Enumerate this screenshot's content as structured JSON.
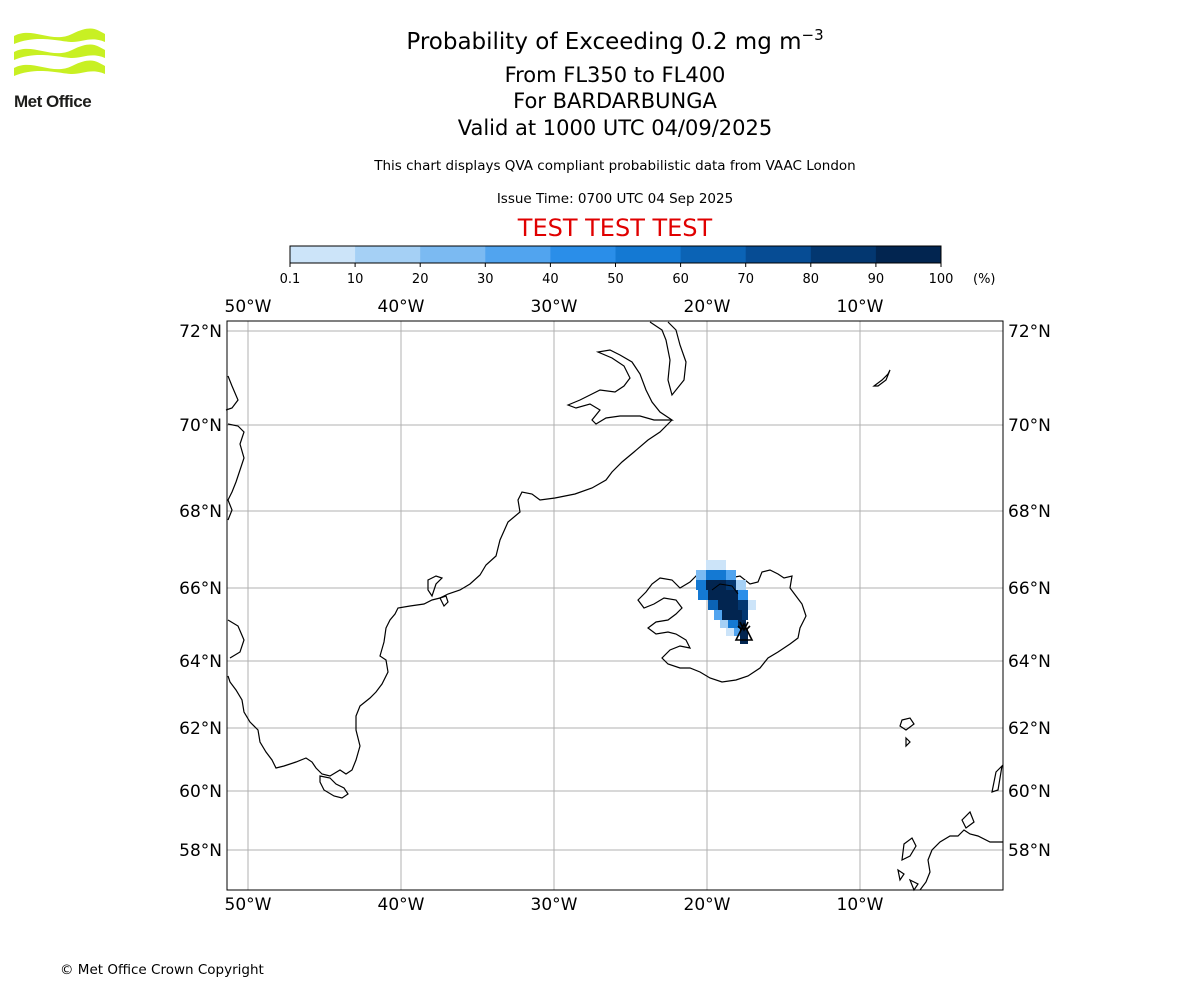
{
  "logo": {
    "text": "Met Office",
    "color": "#c8f023"
  },
  "title": {
    "main": "Probability of Exceeding 0.2 mg m",
    "main_superscript": "−3",
    "range": "From FL350 to FL400",
    "volcano": "For BARDARBUNGA",
    "valid": "Valid at 1000 UTC 04/09/2025"
  },
  "description": "This chart displays QVA compliant probabilistic data from VAAC London",
  "issue_time": "Issue Time: 0700 UTC 04 Sep 2025",
  "test_banner": "TEST TEST TEST",
  "colorbar": {
    "ticks": [
      "0.1",
      "10",
      "20",
      "30",
      "40",
      "50",
      "60",
      "70",
      "80",
      "90",
      "100"
    ],
    "unit": "(%)",
    "colors": [
      "#f0f7ff",
      "#cce4f9",
      "#a5d0f5",
      "#7bbaf2",
      "#51a4ef",
      "#2a8ee9",
      "#1479d3",
      "#0b63b5",
      "#064c94",
      "#033770",
      "#022550"
    ]
  },
  "map": {
    "longitude_labels": [
      "50°W",
      "40°W",
      "30°W",
      "20°W",
      "10°W"
    ],
    "latitude_labels": [
      "72°N",
      "70°N",
      "68°N",
      "66°N",
      "64°N",
      "62°N",
      "60°N",
      "58°N"
    ],
    "gridlines": true,
    "volcano_marker": "volcano-icon",
    "ash_probability_region": "dark-blue plume over north-east Iceland, highest probability (90-100%) in core"
  },
  "copyright": "© Met Office Crown Copyright"
}
